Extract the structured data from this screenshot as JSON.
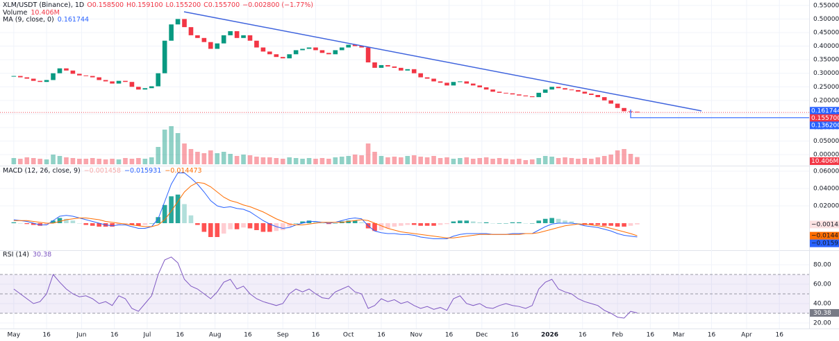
{
  "chart_data": [
    {
      "type": "candlestick",
      "title": "XLM/USDT (Binance), 1D",
      "ohlc": [
        {
          "value": 0.1585,
          "label": "O0.158500"
        },
        {
          "value": 0.1591,
          "label": "H0.159100"
        },
        {
          "value": 0.1552,
          "label": "L0.155200"
        },
        {
          "value": 0.1557,
          "label": "C0.155700"
        }
      ],
      "change": {
        "value": -0.0028,
        "label": "−0.002800"
      },
      "change_pct": {
        "value": -1.77,
        "label": "(−1.77%)"
      },
      "xlim": [
        -2.1,
        121.2
      ],
      "xticks": [
        {
          "value": 0,
          "label": "May"
        },
        {
          "value": 5,
          "label": "16"
        },
        {
          "value": 10.33,
          "label": "Jun"
        },
        {
          "value": 15.33,
          "label": "16"
        },
        {
          "value": 20.33,
          "label": "Jul"
        },
        {
          "value": 25.33,
          "label": "16"
        },
        {
          "value": 30.67,
          "label": "Aug"
        },
        {
          "value": 35.67,
          "label": "16"
        },
        {
          "value": 41,
          "label": "Sep"
        },
        {
          "value": 46,
          "label": "16"
        },
        {
          "value": 51,
          "label": "Oct"
        },
        {
          "value": 56,
          "label": "16"
        },
        {
          "value": 61.33,
          "label": "Nov"
        },
        {
          "value": 66.33,
          "label": "16"
        },
        {
          "value": 71.33,
          "label": "Dec"
        },
        {
          "value": 76.33,
          "label": "16"
        },
        {
          "value": 81.67,
          "label": "2026"
        },
        {
          "value": 86.67,
          "label": "16"
        },
        {
          "value": 92,
          "label": "Feb"
        },
        {
          "value": 97,
          "label": "16"
        },
        {
          "value": 101.33,
          "label": "Mar"
        },
        {
          "value": 106.33,
          "label": "16"
        },
        {
          "value": 111.67,
          "label": "Apr"
        },
        {
          "value": 116.67,
          "label": "16"
        }
      ],
      "ylim": [
        -0.038,
        0.57
      ],
      "yticks": [
        {
          "value": 0,
          "label": "0.000000"
        },
        {
          "value": 0.05,
          "label": "0.050000"
        },
        {
          "value": 0.1,
          "label": "0.100000"
        },
        {
          "value": 0.15,
          "label": "0.150000"
        },
        {
          "value": 0.2,
          "label": "0.200000"
        },
        {
          "value": 0.25,
          "label": "0.250000"
        },
        {
          "value": 0.3,
          "label": "0.300000"
        },
        {
          "value": 0.35,
          "label": "0.350000"
        },
        {
          "value": 0.4,
          "label": "0.400000"
        },
        {
          "value": 0.45,
          "label": "0.450000"
        },
        {
          "value": 0.5,
          "label": "0.500000"
        },
        {
          "value": 0.55,
          "label": "0.550000"
        }
      ],
      "up_color": "#089981",
      "down_color": "#f23645",
      "close": [
        0.29,
        0.285,
        0.28,
        0.272,
        0.268,
        0.275,
        0.3,
        0.318,
        0.31,
        0.298,
        0.292,
        0.29,
        0.285,
        0.275,
        0.27,
        0.262,
        0.272,
        0.268,
        0.25,
        0.24,
        0.245,
        0.252,
        0.3,
        0.42,
        0.48,
        0.5,
        0.47,
        0.44,
        0.43,
        0.415,
        0.39,
        0.41,
        0.44,
        0.455,
        0.43,
        0.44,
        0.42,
        0.395,
        0.38,
        0.37,
        0.36,
        0.355,
        0.37,
        0.385,
        0.39,
        0.395,
        0.385,
        0.375,
        0.37,
        0.385,
        0.395,
        0.405,
        0.4,
        0.395,
        0.34,
        0.32,
        0.33,
        0.325,
        0.32,
        0.31,
        0.315,
        0.3,
        0.285,
        0.28,
        0.27,
        0.265,
        0.255,
        0.268,
        0.27,
        0.262,
        0.255,
        0.248,
        0.24,
        0.232,
        0.228,
        0.226,
        0.222,
        0.218,
        0.215,
        0.212,
        0.228,
        0.24,
        0.25,
        0.245,
        0.24,
        0.238,
        0.232,
        0.225,
        0.22,
        0.212,
        0.2,
        0.188,
        0.172,
        0.16,
        0.158,
        0.1557
      ],
      "volume": {
        "name": "Volume",
        "current": {
          "value": 10.406,
          "label": "10.406M"
        },
        "values": [
          9,
          8,
          10,
          9,
          8,
          7,
          14,
          12,
          10,
          9,
          8,
          8,
          9,
          8,
          7,
          8,
          7,
          9,
          8,
          9,
          8,
          10,
          25,
          50,
          55,
          45,
          30,
          22,
          18,
          16,
          20,
          16,
          18,
          15,
          12,
          14,
          13,
          11,
          10,
          10,
          9,
          8,
          10,
          9,
          8,
          9,
          8,
          9,
          8,
          10,
          11,
          12,
          14,
          13,
          30,
          18,
          12,
          10,
          11,
          10,
          12,
          13,
          11,
          10,
          12,
          9,
          10,
          8,
          9,
          10,
          8,
          9,
          10,
          8,
          9,
          8,
          7,
          8,
          6,
          7,
          9,
          12,
          11,
          9,
          10,
          9,
          8,
          9,
          8,
          10,
          12,
          14,
          20,
          22,
          15,
          10.406
        ]
      },
      "ma": {
        "name": "MA (9, close, 0)",
        "current": 0.161744,
        "color": "#2962ff"
      },
      "price_tags": [
        {
          "value": 0.161744,
          "label": "0.161744",
          "color": "#2962ff"
        },
        {
          "value": 0.1557,
          "label": "0.155700",
          "color": "#f23645"
        },
        {
          "value": 0.1362,
          "label": "0.136200",
          "color": "#2962ff"
        }
      ]
    },
    {
      "type": "macd",
      "title": "MACD (12, 26, close, 9)",
      "ylim": [
        -0.0304,
        0.0656
      ],
      "yticks": [
        {
          "value": 0.02,
          "label": "0.020000"
        },
        {
          "value": 0.04,
          "label": "0.040000"
        },
        {
          "value": 0.06,
          "label": "0.060000"
        }
      ],
      "histogram": {
        "current": {
          "value": -0.001458,
          "label": "−0.001458"
        },
        "color": "#f7a9a8",
        "values": [
          0.001,
          0,
          -0.001,
          -0.002,
          -0.003,
          -0.002,
          0.003,
          0.006,
          0.005,
          0.003,
          0,
          -0.002,
          -0.003,
          -0.004,
          -0.004,
          -0.004,
          -0.002,
          -0.001,
          -0.002,
          -0.003,
          -0.002,
          0,
          0.007,
          0.021,
          0.031,
          0.033,
          0.022,
          0.009,
          -0.002,
          -0.01,
          -0.016,
          -0.016,
          -0.012,
          -0.007,
          -0.007,
          -0.005,
          -0.006,
          -0.008,
          -0.01,
          -0.01,
          -0.009,
          -0.008,
          -0.004,
          0,
          0.002,
          0.003,
          0.002,
          0,
          -0.001,
          0,
          0.002,
          0.003,
          0.003,
          0.001,
          -0.006,
          -0.009,
          -0.008,
          -0.006,
          -0.004,
          -0.003,
          -0.002,
          -0.002,
          -0.003,
          -0.003,
          -0.003,
          -0.002,
          -0.001,
          0.002,
          0.003,
          0.003,
          0.002,
          0.001,
          0.001,
          0,
          0,
          0,
          0.001,
          0.001,
          0,
          0,
          0.003,
          0.005,
          0.006,
          0.005,
          0.003,
          0.002,
          0,
          -0.002,
          -0.002,
          -0.002,
          -0.003,
          -0.003,
          -0.004,
          -0.004,
          -0.003,
          -0.001458
        ]
      },
      "macd": {
        "current": {
          "value": -0.015931,
          "label": "−0.015931"
        },
        "color": "#2962ff",
        "values": [
          0.004,
          0.003,
          0.002,
          0,
          -0.002,
          -0.002,
          0.003,
          0.008,
          0.009,
          0.008,
          0.006,
          0.004,
          0.002,
          0,
          -0.002,
          -0.003,
          -0.002,
          -0.002,
          -0.004,
          -0.006,
          -0.006,
          -0.004,
          0.005,
          0.025,
          0.045,
          0.058,
          0.058,
          0.052,
          0.045,
          0.036,
          0.026,
          0.02,
          0.018,
          0.019,
          0.017,
          0.016,
          0.013,
          0.008,
          0.003,
          -0.001,
          -0.004,
          -0.006,
          -0.005,
          -0.002,
          0,
          0.002,
          0.002,
          0.001,
          0,
          0.001,
          0.003,
          0.005,
          0.006,
          0.005,
          -0.003,
          -0.009,
          -0.011,
          -0.012,
          -0.012,
          -0.013,
          -0.013,
          -0.014,
          -0.016,
          -0.017,
          -0.018,
          -0.018,
          -0.018,
          -0.015,
          -0.013,
          -0.012,
          -0.012,
          -0.012,
          -0.012,
          -0.013,
          -0.013,
          -0.013,
          -0.012,
          -0.012,
          -0.012,
          -0.012,
          -0.008,
          -0.004,
          -0.001,
          0,
          0,
          0,
          -0.001,
          -0.003,
          -0.004,
          -0.005,
          -0.007,
          -0.009,
          -0.012,
          -0.014,
          -0.015,
          -0.015931
        ]
      },
      "signal": {
        "current": {
          "value": -0.014473,
          "label": "−0.014473"
        },
        "color": "#ff6d00",
        "values": [
          0.003,
          0.003,
          0.003,
          0.002,
          0.001,
          0,
          0,
          0.002,
          0.004,
          0.005,
          0.006,
          0.006,
          0.005,
          0.004,
          0.002,
          0.001,
          0,
          -0.001,
          -0.002,
          -0.003,
          -0.004,
          -0.004,
          -0.002,
          0.004,
          0.014,
          0.025,
          0.036,
          0.043,
          0.047,
          0.046,
          0.042,
          0.036,
          0.03,
          0.026,
          0.024,
          0.021,
          0.019,
          0.016,
          0.013,
          0.009,
          0.005,
          0.002,
          -0.001,
          -0.002,
          -0.002,
          -0.001,
          0,
          0.001,
          0.001,
          0.001,
          0.001,
          0.002,
          0.003,
          0.004,
          0.003,
          0,
          -0.003,
          -0.006,
          -0.008,
          -0.01,
          -0.011,
          -0.012,
          -0.013,
          -0.014,
          -0.015,
          -0.016,
          -0.017,
          -0.017,
          -0.016,
          -0.015,
          -0.014,
          -0.013,
          -0.013,
          -0.013,
          -0.013,
          -0.013,
          -0.013,
          -0.013,
          -0.012,
          -0.012,
          -0.011,
          -0.009,
          -0.007,
          -0.005,
          -0.003,
          -0.002,
          -0.001,
          -0.001,
          -0.002,
          -0.003,
          -0.004,
          -0.006,
          -0.008,
          -0.01,
          -0.012,
          -0.014473
        ]
      }
    },
    {
      "type": "line",
      "title": "RSI (14)",
      "color": "#7e57c2",
      "current": 30.38,
      "ylim": [
        15.7,
        94.3
      ],
      "yticks": [
        {
          "value": 20,
          "label": "20.00"
        },
        {
          "value": 40,
          "label": "40.00"
        },
        {
          "value": 60,
          "label": "60.00"
        },
        {
          "value": 80,
          "label": "80.00"
        }
      ],
      "band": [
        30,
        70
      ],
      "levels": [
        30,
        50,
        70
      ],
      "values": [
        55,
        50,
        45,
        40,
        42,
        50,
        70,
        62,
        55,
        50,
        47,
        48,
        45,
        40,
        42,
        38,
        48,
        45,
        35,
        32,
        40,
        48,
        70,
        85,
        88,
        82,
        65,
        58,
        55,
        50,
        45,
        52,
        62,
        65,
        55,
        58,
        50,
        45,
        42,
        40,
        38,
        40,
        50,
        55,
        52,
        55,
        50,
        46,
        45,
        52,
        55,
        58,
        52,
        50,
        35,
        38,
        45,
        42,
        44,
        40,
        42,
        38,
        35,
        37,
        34,
        36,
        33,
        45,
        48,
        40,
        38,
        40,
        36,
        35,
        38,
        40,
        38,
        37,
        35,
        38,
        55,
        62,
        65,
        55,
        52,
        50,
        45,
        42,
        40,
        38,
        33,
        30,
        26,
        25,
        32,
        30.38
      ]
    }
  ]
}
